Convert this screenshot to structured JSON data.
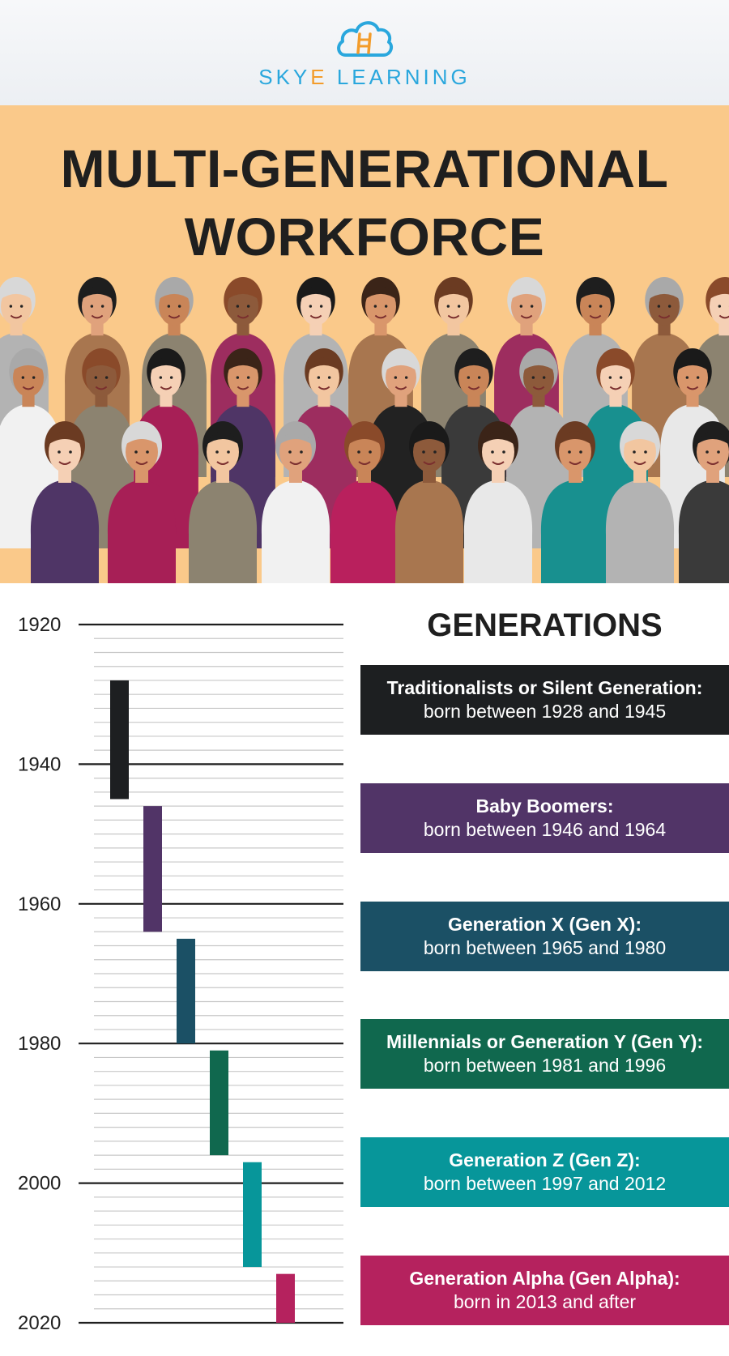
{
  "brand": {
    "name_part1": "SKY",
    "name_accent": "E",
    "name_part2": " LEARNING",
    "icon": "cloud-ladder-icon",
    "colors": {
      "primary": "#2aa7dd",
      "accent": "#f39c2b"
    }
  },
  "banner": {
    "title_line1": "MULTI-GENERATIONAL",
    "title_line2": "WORKFORCE",
    "background": "#fac98a",
    "illustration": "crowd-of-diverse-people"
  },
  "chart_data": {
    "type": "bar",
    "orientation": "vertical-timeline",
    "xlabel": "",
    "ylabel": "",
    "ylim": [
      1920,
      2020
    ],
    "yticks": [
      1920,
      1940,
      1960,
      1980,
      2000,
      2020
    ],
    "minor_grid": true,
    "series": [
      {
        "name": "Traditionalists or Silent Generation:",
        "start": 1928,
        "end": 1945,
        "color": "#1d1f21"
      },
      {
        "name": "Baby Boomers:",
        "start": 1946,
        "end": 1964,
        "color": "#513467"
      },
      {
        "name": "Generation X (Gen X):",
        "start": 1965,
        "end": 1980,
        "color": "#1b5065"
      },
      {
        "name": "Millennials or Generation Y (Gen Y):",
        "start": 1981,
        "end": 1996,
        "color": "#10684e"
      },
      {
        "name": "Generation Z (Gen Z):",
        "start": 1997,
        "end": 2012,
        "color": "#07969a"
      },
      {
        "name": "Generation Alpha (Gen Alpha):",
        "start": 2013,
        "end": 2020,
        "color": "#b5225e"
      }
    ]
  },
  "generations": {
    "heading": "GENERATIONS",
    "items": [
      {
        "name": "Traditionalists or Silent Generation:",
        "range": "born between 1928 and 1945"
      },
      {
        "name": "Baby Boomers:",
        "range": "born between 1946 and 1964"
      },
      {
        "name": "Generation X (Gen X):",
        "range": "born between 1965 and 1980"
      },
      {
        "name": "Millennials or Generation Y (Gen Y):",
        "range": "born between 1981 and 1996"
      },
      {
        "name": "Generation Z (Gen Z):",
        "range": "born between 1997 and 2012"
      },
      {
        "name": "Generation Alpha (Gen Alpha):",
        "range": "born in 2013 and after"
      }
    ]
  }
}
